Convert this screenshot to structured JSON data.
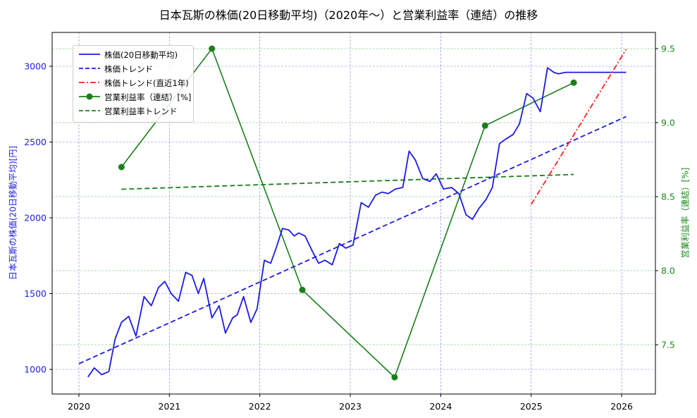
{
  "title": "日本瓦斯の株価(20日移動平均)（2020年～）と営業利益率（連結）の推移",
  "axes": {
    "left_label": "日本瓦斯の株価(20日移動平均)[円]",
    "right_label": "営業利益率（連結）[%]",
    "left_ticks": [
      "1000",
      "1500",
      "2000",
      "2500",
      "3000"
    ],
    "right_ticks": [
      "7.5",
      "8.0",
      "8.5",
      "9.0",
      "9.5"
    ],
    "x_ticks": [
      "2020",
      "2021",
      "2022",
      "2023",
      "2024",
      "2025",
      "2026"
    ]
  },
  "legend": [
    {
      "label": "株価(20日移動平均)",
      "style": "solid-blue"
    },
    {
      "label": "株価トレンド",
      "style": "dashed-blue"
    },
    {
      "label": "株価トレンド(直近1年)",
      "style": "dashdot-red"
    },
    {
      "label": "営業利益率（連結）[%]",
      "style": "solid-green-marker"
    },
    {
      "label": "営業利益率トレンド",
      "style": "dashed-green"
    }
  ],
  "colors": {
    "price": "#1a1ae6",
    "price_trend": "#1a1ae6",
    "recent_trend": "#ff2020",
    "margin": "#1a7f1a",
    "margin_trend": "#1a7f1a",
    "left_axis_text": "#2020e0",
    "right_axis_text": "#1a8a1a"
  },
  "chart_data": {
    "type": "line",
    "title": "日本瓦斯の株価(20日移動平均)（2020年～）と営業利益率（連結）の推移",
    "xlabel": "",
    "ylabel": "日本瓦斯の株価(20日移動平均)[円]",
    "y2label": "営業利益率（連結）[%]",
    "xlim": [
      2019.7,
      2026.35
    ],
    "ylim": [
      850,
      3220
    ],
    "y2lim": [
      7.2,
      9.62
    ],
    "grid": true,
    "legend_position": "upper left",
    "series": [
      {
        "name": "株価(20日移動平均)",
        "axis": "left",
        "x": [
          2020.1,
          2020.17,
          2020.25,
          2020.33,
          2020.4,
          2020.47,
          2020.55,
          2020.63,
          2020.72,
          2020.8,
          2020.88,
          2020.95,
          2021.02,
          2021.1,
          2021.18,
          2021.25,
          2021.32,
          2021.38,
          2021.47,
          2021.55,
          2021.62,
          2021.7,
          2021.75,
          2021.82,
          2021.9,
          2021.97,
          2022.05,
          2022.12,
          2022.18,
          2022.25,
          2022.32,
          2022.38,
          2022.43,
          2022.5,
          2022.58,
          2022.65,
          2022.72,
          2022.8,
          2022.88,
          2022.95,
          2023.03,
          2023.12,
          2023.2,
          2023.28,
          2023.35,
          2023.42,
          2023.5,
          2023.58,
          2023.65,
          2023.72,
          2023.8,
          2023.88,
          2023.95,
          2024.03,
          2024.12,
          2024.2,
          2024.28,
          2024.35,
          2024.42,
          2024.5,
          2024.57,
          2024.65,
          2024.72,
          2024.8,
          2024.87,
          2024.95,
          2025.02,
          2025.1,
          2025.18,
          2025.25,
          2025.3,
          2025.38,
          2025.47,
          2025.55,
          2025.62,
          2025.7,
          2025.77,
          2025.85,
          2025.92,
          2025.98,
          2026.05
        ],
        "values": [
          950,
          1010,
          965,
          985,
          1200,
          1310,
          1350,
          1220,
          1480,
          1420,
          1540,
          1580,
          1500,
          1450,
          1640,
          1620,
          1500,
          1600,
          1340,
          1420,
          1240,
          1340,
          1360,
          1480,
          1310,
          1400,
          1720,
          1700,
          1800,
          1930,
          1920,
          1880,
          1900,
          1880,
          1780,
          1700,
          1720,
          1690,
          1830,
          1800,
          1820,
          2100,
          2070,
          2150,
          2170,
          2160,
          2190,
          2200,
          2440,
          2380,
          2260,
          2240,
          2290,
          2190,
          2200,
          2160,
          2020,
          1990,
          2060,
          2120,
          2200,
          2490,
          2520,
          2550,
          2620,
          2820,
          2790,
          2700,
          2990,
          2960,
          2950,
          2960,
          2960,
          2960,
          2960,
          2960,
          2960,
          2960,
          2960,
          2960,
          2960
        ]
      },
      {
        "name": "株価トレンド",
        "axis": "left",
        "x": [
          2020.0,
          2026.05
        ],
        "values": [
          1037,
          2668
        ]
      },
      {
        "name": "株価トレンド(直近1年)",
        "axis": "left",
        "x": [
          2025.0,
          2026.05
        ],
        "values": [
          2089,
          3112
        ]
      },
      {
        "name": "営業利益率（連結）[%]",
        "axis": "right",
        "x": [
          2020.47,
          2021.47,
          2022.47,
          2023.49,
          2024.49,
          2025.47
        ],
        "values": [
          8.7,
          9.5,
          7.87,
          7.28,
          8.98,
          9.27
        ]
      },
      {
        "name": "営業利益率トレンド",
        "axis": "right",
        "x": [
          2020.47,
          2025.47
        ],
        "values": [
          8.55,
          8.65
        ]
      }
    ]
  }
}
